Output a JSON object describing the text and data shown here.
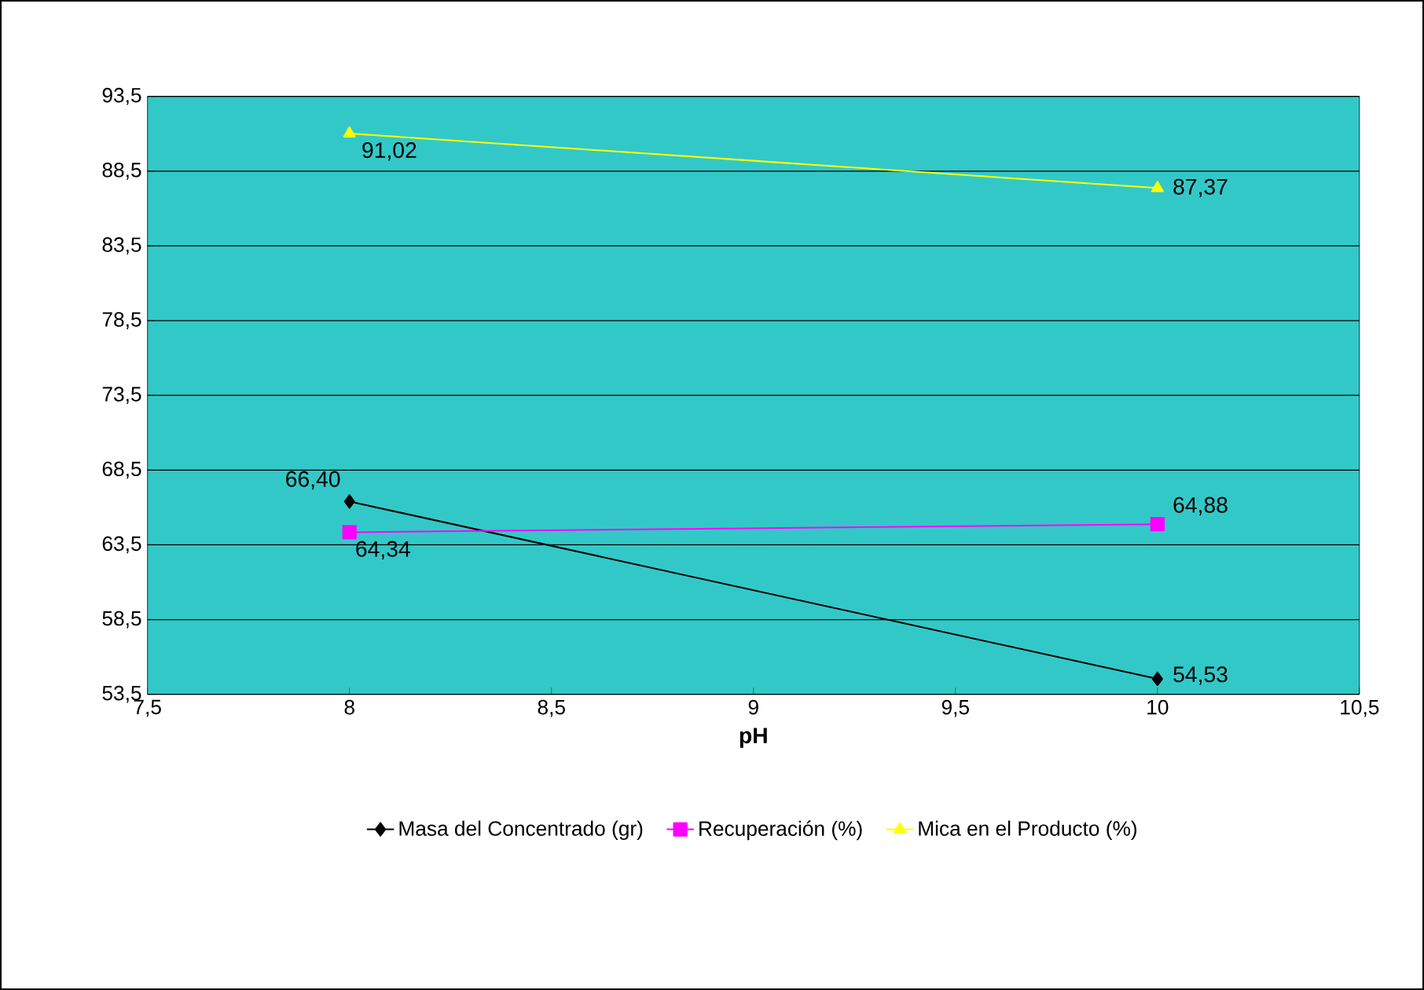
{
  "chart_data": {
    "type": "line",
    "xlabel": "pH",
    "x": [
      8,
      10
    ],
    "series": [
      {
        "name": "Masa del Concentrado (gr)",
        "color": "#000000",
        "marker": "diamond",
        "values": [
          66.4,
          54.53
        ],
        "value_labels": [
          "66,40",
          "54,53"
        ]
      },
      {
        "name": "Recuperación (%)",
        "color": "#ff00ff",
        "marker": "square",
        "values": [
          64.34,
          64.88
        ],
        "value_labels": [
          "64,34",
          "64,88"
        ]
      },
      {
        "name": "Mica en el Producto (%)",
        "color": "#ffff00",
        "marker": "triangle",
        "values": [
          91.02,
          87.37
        ],
        "value_labels": [
          "91,02",
          "87,37"
        ]
      }
    ],
    "xlim": [
      7.5,
      10.5
    ],
    "xticks": [
      {
        "value": 7.5,
        "label": "7,5"
      },
      {
        "value": 8,
        "label": "8"
      },
      {
        "value": 8.5,
        "label": "8,5"
      },
      {
        "value": 9,
        "label": "9"
      },
      {
        "value": 9.5,
        "label": "9,5"
      },
      {
        "value": 10,
        "label": "10"
      },
      {
        "value": 10.5,
        "label": "10,5"
      }
    ],
    "ylim": [
      53.5,
      93.5
    ],
    "yticks": [
      {
        "value": 53.5,
        "label": "53,5"
      },
      {
        "value": 58.5,
        "label": "58,5"
      },
      {
        "value": 63.5,
        "label": "63,5"
      },
      {
        "value": 68.5,
        "label": "68,5"
      },
      {
        "value": 73.5,
        "label": "73,5"
      },
      {
        "value": 78.5,
        "label": "78,5"
      },
      {
        "value": 83.5,
        "label": "83,5"
      },
      {
        "value": 88.5,
        "label": "88,5"
      },
      {
        "value": 93.5,
        "label": "93,5"
      }
    ],
    "grid": "y",
    "legend": "bottom",
    "line_style": "solid"
  }
}
